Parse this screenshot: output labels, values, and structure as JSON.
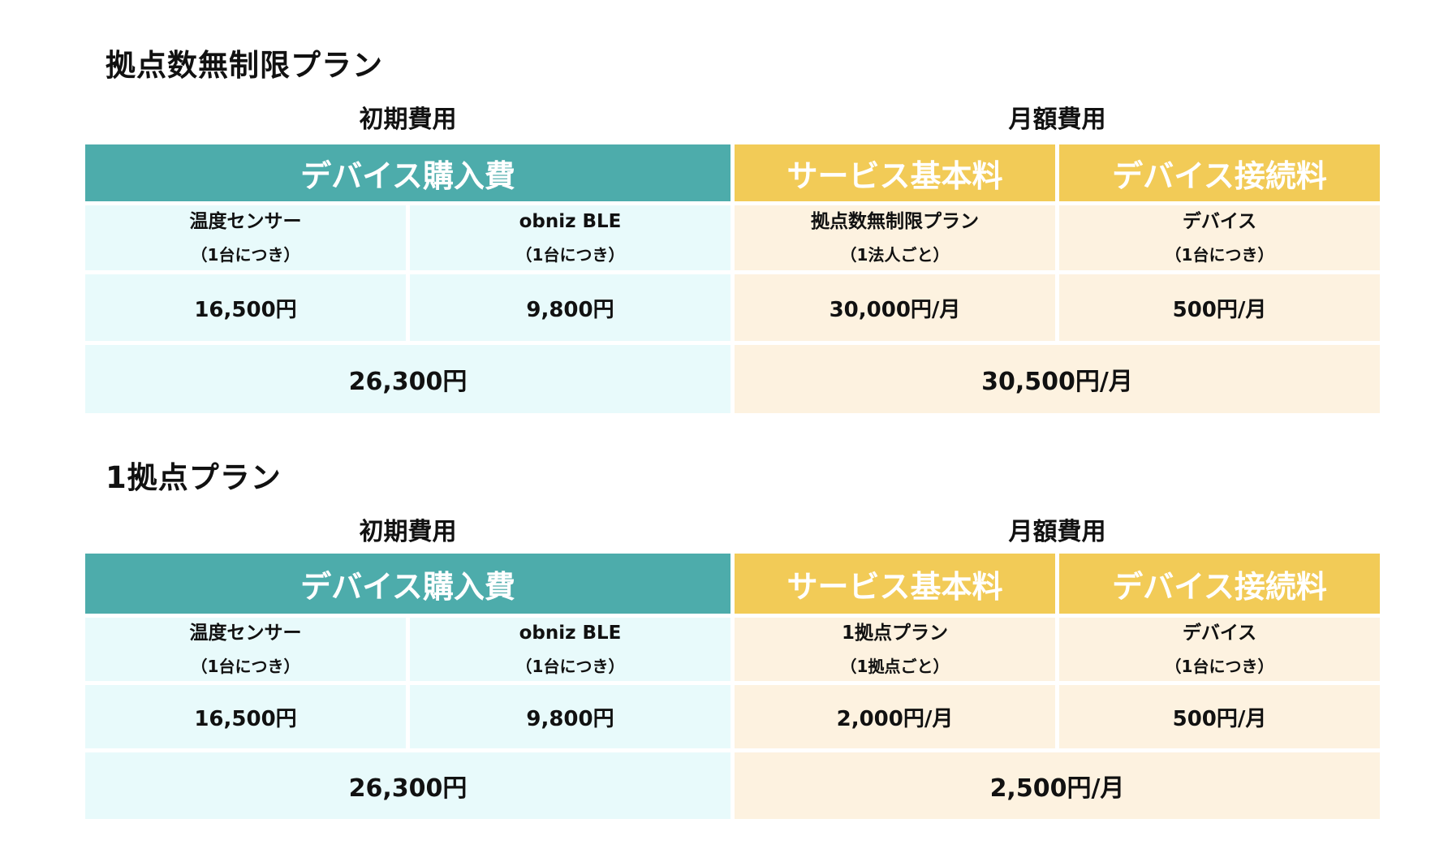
{
  "plans": [
    {
      "title": "拠点数無制限プラン",
      "initial_label": "初期費用",
      "monthly_label": "月額費用",
      "header_device_purchase": "デバイス購入費",
      "header_service_fee": "サービス基本料",
      "header_device_connect": "デバイス接続料",
      "items": [
        {
          "name": "温度センサー",
          "sub": "（1台につき）",
          "price": "16,500円"
        },
        {
          "name": "obniz BLE",
          "sub": "（1台につき）",
          "price": "9,800円"
        },
        {
          "name": "拠点数無制限プラン",
          "sub": "（1法人ごと）",
          "price": "30,000円/月"
        },
        {
          "name": "デバイス",
          "sub": "（1台につき）",
          "price": "500円/月"
        }
      ],
      "initial_total": "26,300円",
      "monthly_total": "30,500円/月"
    },
    {
      "title": "1拠点プラン",
      "initial_label": "初期費用",
      "monthly_label": "月額費用",
      "header_device_purchase": "デバイス購入費",
      "header_service_fee": "サービス基本料",
      "header_device_connect": "デバイス接続料",
      "items": [
        {
          "name": "温度センサー",
          "sub": "（1台につき）",
          "price": "16,500円"
        },
        {
          "name": "obniz BLE",
          "sub": "（1台につき）",
          "price": "9,800円"
        },
        {
          "name": "1拠点プラン",
          "sub": "（1拠点ごと）",
          "price": "2,000円/月"
        },
        {
          "name": "デバイス",
          "sub": "（1台につき）",
          "price": "500円/月"
        }
      ],
      "initial_total": "26,300円",
      "monthly_total": "2,500円/月"
    }
  ],
  "colors": {
    "teal_header": "#4dacab",
    "yellow_header": "#f2cb57",
    "light_blue_cell": "#e8fafb",
    "light_yellow_cell": "#fdf2e0"
  }
}
